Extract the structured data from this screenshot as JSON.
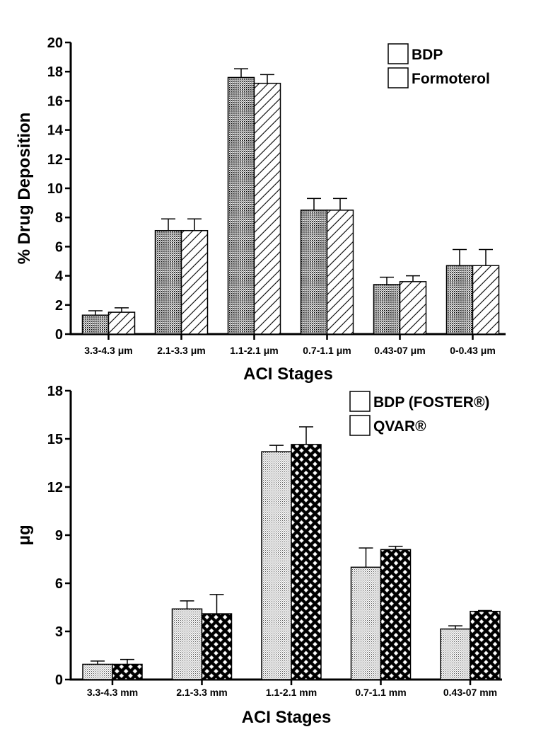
{
  "chart_data": [
    {
      "type": "bar",
      "ylabel": "% Drug Deposition",
      "xlabel": "ACI Stages",
      "ylim": [
        0,
        20
      ],
      "yticks": [
        0,
        2,
        4,
        6,
        8,
        10,
        12,
        14,
        16,
        18,
        20
      ],
      "categories": [
        "3.3-4.3 μm",
        "2.1-3.3 μm",
        "1.1-2.1 μm",
        "0.7-1.1 μm",
        "0.43-07 μm",
        "0-0.43 μm"
      ],
      "legend_position": "top-right",
      "series": [
        {
          "name": "BDP",
          "pattern": "dense-dots",
          "values": [
            1.3,
            7.1,
            17.6,
            8.5,
            3.4,
            4.7
          ],
          "errors": [
            0.3,
            0.8,
            0.6,
            0.8,
            0.5,
            1.1
          ]
        },
        {
          "name": "Formoterol",
          "pattern": "diagonal-hatch",
          "values": [
            1.5,
            7.1,
            17.2,
            8.5,
            3.6,
            4.7
          ],
          "errors": [
            0.3,
            0.8,
            0.6,
            0.8,
            0.4,
            1.1
          ]
        }
      ]
    },
    {
      "type": "bar",
      "ylabel": "μg",
      "xlabel": "ACI Stages",
      "ylim": [
        0,
        18
      ],
      "yticks": [
        0,
        3,
        6,
        9,
        12,
        15,
        18
      ],
      "categories": [
        "3.3-4.3 mm",
        "2.1-3.3 mm",
        "1.1-2.1 mm",
        "0.7-1.1 mm",
        "0.43-07 mm"
      ],
      "legend_position": "top-right",
      "series": [
        {
          "name": "BDP (FOSTER®)",
          "pattern": "light-dots",
          "values": [
            0.95,
            4.4,
            14.2,
            7.0,
            3.15
          ],
          "errors": [
            0.2,
            0.5,
            0.4,
            1.2,
            0.2
          ]
        },
        {
          "name": "QVAR®",
          "pattern": "crosshatch",
          "values": [
            0.95,
            4.1,
            14.65,
            8.1,
            4.25
          ],
          "errors": [
            0.3,
            1.2,
            1.1,
            0.2,
            0.05
          ]
        }
      ]
    }
  ]
}
